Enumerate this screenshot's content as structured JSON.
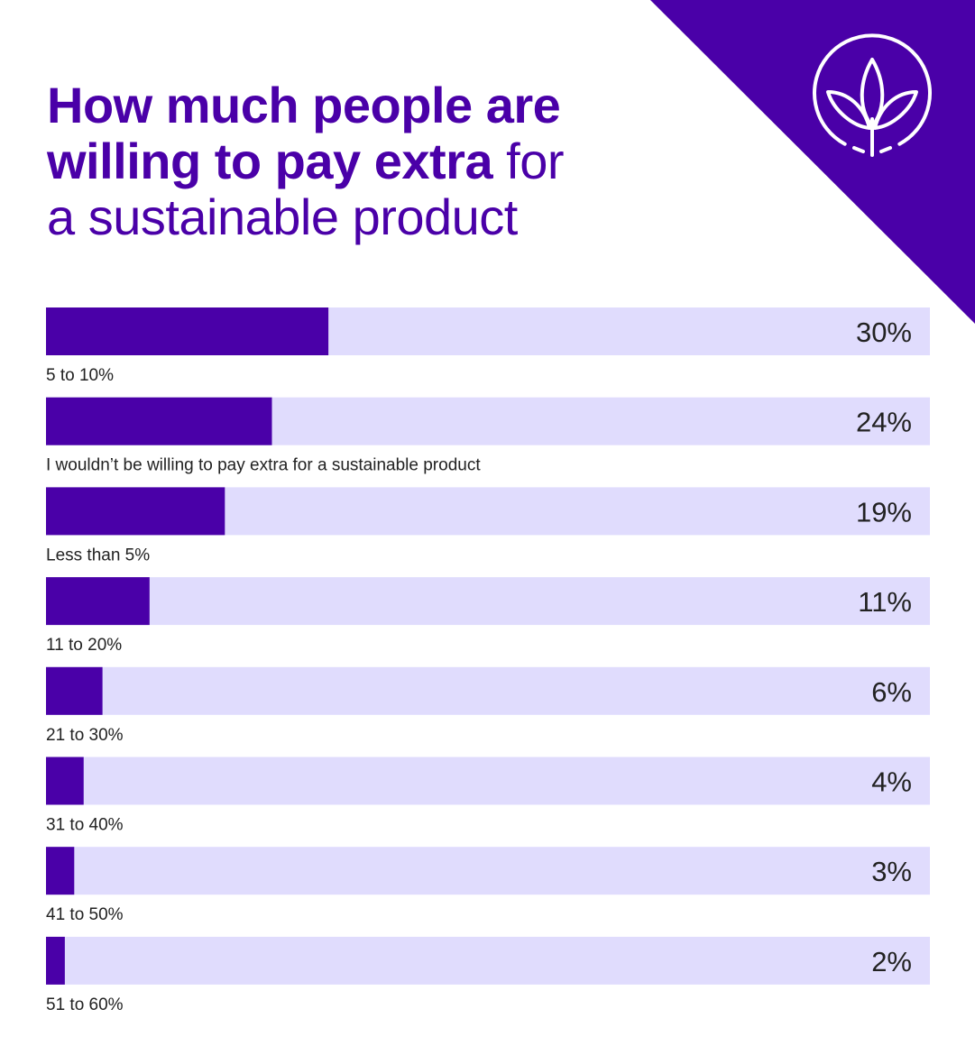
{
  "header": {
    "title_bold": "How much people are willing to pay extra",
    "title_regular_1": " for",
    "title_regular_2": "a sustainable product",
    "logo": "leaf-in-circle-icon"
  },
  "colors": {
    "accent": "#4a00a8",
    "track": "#e0dcfd",
    "text": "#222222",
    "background": "#ffffff"
  },
  "chart_data": {
    "type": "bar",
    "orientation": "horizontal",
    "title": "How much people are willing to pay extra for a sustainable product",
    "xlim": [
      0,
      100
    ],
    "grid": false,
    "categories": [
      "5 to 10%",
      "I wouldn’t be willing to pay extra for a sustainable product",
      "Less than 5%",
      "11 to 20%",
      "21 to 30%",
      "31 to 40%",
      "41 to 50%",
      "51 to 60%"
    ],
    "values": [
      30,
      24,
      19,
      11,
      6,
      4,
      3,
      2
    ],
    "value_labels": [
      "30%",
      "24%",
      "19%",
      "11%",
      "6%",
      "4%",
      "3%",
      "2%"
    ]
  }
}
